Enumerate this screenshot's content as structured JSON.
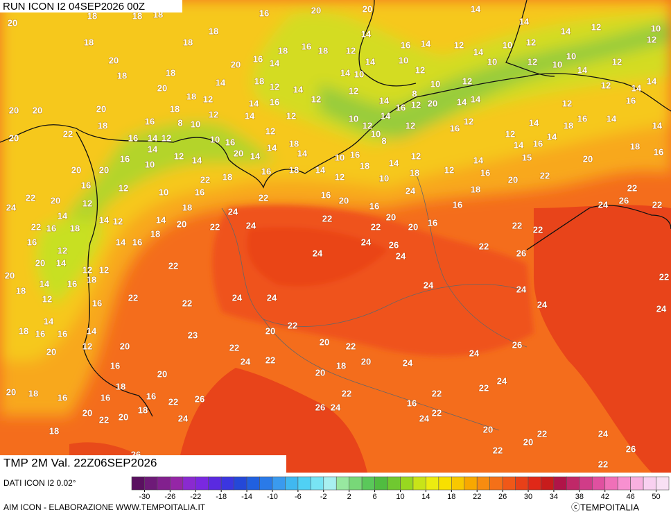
{
  "header": {
    "run": "RUN ICON I2 04SEP2026 00Z"
  },
  "footer": {
    "field": "TMP 2M Val. 22Z06SEP2026",
    "source": "DATI ICON I2 0.02°",
    "credit": "AIM ICON - ELABORAZIONE WWW.TEMPOITALIA.IT",
    "copyright": "ⓒTEMPOITALIA"
  },
  "legend": {
    "range": [
      -32,
      52
    ],
    "ticks": [
      -30,
      -26,
      -22,
      -18,
      -14,
      -10,
      -6,
      -2,
      2,
      6,
      10,
      14,
      18,
      22,
      26,
      30,
      34,
      38,
      42,
      46,
      50
    ],
    "colors": [
      "#5a1060",
      "#6e1a78",
      "#82208e",
      "#9526a6",
      "#8a2ad0",
      "#7a28e0",
      "#5a2ae0",
      "#3b36e0",
      "#2448d8",
      "#2060e0",
      "#2a7ae8",
      "#3a9aee",
      "#40b8f0",
      "#50d0f4",
      "#78e4f4",
      "#a8f0f0",
      "#98e8a0",
      "#78d878",
      "#5ac85a",
      "#50bc40",
      "#70c830",
      "#98d820",
      "#c8e418",
      "#ecec10",
      "#f8e000",
      "#f8c800",
      "#f8a800",
      "#f88c10",
      "#f47018",
      "#f05818",
      "#e84018",
      "#e02818",
      "#c81c1c",
      "#b01448",
      "#c02868",
      "#d03c88",
      "#e050a0",
      "#f070b8",
      "#f890d0",
      "#f8b0e0",
      "#f8d0f0",
      "#f8e0f4"
    ]
  },
  "map": {
    "labels": [
      20,
      18,
      18,
      18,
      20,
      20,
      14,
      16,
      18,
      18,
      18,
      18,
      16,
      18,
      12,
      14,
      16,
      14,
      12,
      14,
      10,
      12,
      14,
      14,
      12,
      10,
      12,
      20,
      18,
      18,
      20,
      16,
      14,
      18,
      12,
      14,
      20,
      18,
      12,
      14,
      12,
      14,
      10,
      14,
      12,
      10,
      12,
      10,
      12,
      10,
      12,
      10,
      10,
      14,
      12,
      12,
      14,
      14,
      20,
      20,
      20,
      18,
      14,
      16,
      8,
      14,
      16,
      12,
      20,
      14,
      14,
      12,
      16,
      22,
      18,
      16,
      8,
      10,
      12,
      14,
      12,
      10,
      12,
      14,
      12,
      16,
      12,
      12,
      14,
      18,
      16,
      14,
      14,
      20,
      16,
      14,
      12,
      10,
      16,
      12,
      18,
      14,
      10,
      16,
      10,
      8,
      14,
      16,
      14,
      18,
      16,
      14,
      20,
      14,
      14,
      16,
      10,
      12,
      14,
      18,
      14,
      12,
      14,
      15,
      20,
      20,
      20,
      16,
      18,
      14,
      18,
      12,
      16,
      22,
      16,
      22,
      18,
      12,
      10,
      20,
      12,
      10,
      16,
      24,
      18,
      22,
      22,
      20,
      12,
      18,
      24,
      22,
      16,
      20,
      16,
      16,
      24,
      26,
      22,
      24,
      14,
      14,
      12,
      14,
      20,
      22,
      24,
      22,
      20,
      22,
      20,
      16,
      22,
      22,
      22,
      16,
      18,
      18,
      16,
      14,
      16,
      24,
      26,
      22,
      12,
      24,
      24,
      26,
      20,
      14,
      22,
      12,
      12,
      20,
      18,
      16,
      18,
      14,
      22,
      24,
      24,
      12,
      22,
      16,
      22,
      24,
      24,
      24,
      24,
      14,
      14,
      20,
      22,
      23,
      18,
      16,
      16,
      20,
      22,
      12,
      20,
      22,
      26,
      20,
      16,
      24,
      22,
      18,
      20,
      24,
      24,
      20,
      20,
      24,
      18,
      20,
      18,
      16,
      16,
      16,
      26,
      22,
      22,
      16,
      22,
      22,
      20,
      22,
      20,
      18,
      24,
      26,
      24,
      22,
      24,
      18,
      20,
      22,
      20,
      24,
      22,
      26,
      26,
      22
    ]
  }
}
